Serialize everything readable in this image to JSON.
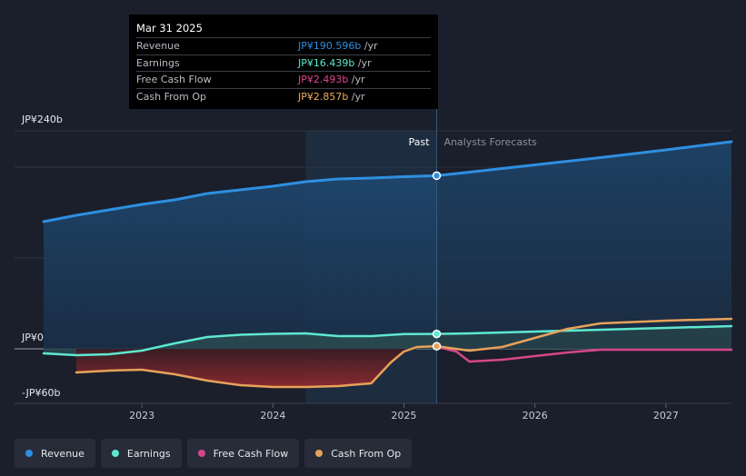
{
  "tooltip": {
    "date": "Mar 31 2025",
    "rows": [
      {
        "label": "Revenue",
        "value": "JP¥190.596b",
        "unit": "/yr",
        "color": "#2e8fe0"
      },
      {
        "label": "Earnings",
        "value": "JP¥16.439b",
        "unit": "/yr",
        "color": "#5ee8d0"
      },
      {
        "label": "Free Cash Flow",
        "value": "JP¥2.493b",
        "unit": "/yr",
        "color": "#e0468c"
      },
      {
        "label": "Cash From Op",
        "value": "JP¥2.857b",
        "unit": "/yr",
        "color": "#f0ad5e"
      }
    ]
  },
  "legend": [
    {
      "label": "Revenue",
      "color": "#2e8fe0"
    },
    {
      "label": "Earnings",
      "color": "#5ee8d0"
    },
    {
      "label": "Free Cash Flow",
      "color": "#d6478b"
    },
    {
      "label": "Cash From Op",
      "color": "#e8a15a"
    }
  ],
  "chart_data": {
    "type": "line",
    "title": "",
    "xlabel": "",
    "ylabel": "",
    "ylim": [
      -60,
      240
    ],
    "xlim": [
      2022.25,
      2027.5
    ],
    "y_tick_labels": [
      {
        "value": 240,
        "label": "JP¥240b"
      },
      {
        "value": 0,
        "label": "JP¥0"
      },
      {
        "value": -60,
        "label": "-JP¥60b"
      }
    ],
    "x_ticks": [
      {
        "value": 2023,
        "label": "2023"
      },
      {
        "value": 2024,
        "label": "2024"
      },
      {
        "value": 2025,
        "label": "2025"
      },
      {
        "value": 2026,
        "label": "2026"
      },
      {
        "value": 2027,
        "label": "2027"
      }
    ],
    "gridlines": [
      240,
      200,
      100,
      0
    ],
    "divider_x": 2025.25,
    "past_label": "Past",
    "forecast_label": "Analysts Forecasts",
    "highlight_band": [
      2024.25,
      2025.25
    ],
    "series": [
      {
        "name": "Revenue",
        "color": "#2e8fe0",
        "fill": true,
        "x": [
          2022.25,
          2022.5,
          2022.75,
          2023.0,
          2023.25,
          2023.5,
          2023.75,
          2024.0,
          2024.25,
          2024.5,
          2024.75,
          2025.0,
          2025.25,
          2025.5,
          2025.75,
          2026.0,
          2026.5,
          2027.0,
          2027.5
        ],
        "values": [
          140,
          147,
          153,
          159,
          164,
          171,
          175,
          179,
          184,
          187,
          188,
          189.5,
          190.6,
          194.5,
          198.5,
          202.5,
          210.5,
          219,
          228
        ]
      },
      {
        "name": "Earnings",
        "color": "#5ee8d0",
        "fill": true,
        "x": [
          2022.25,
          2022.5,
          2022.75,
          2023.0,
          2023.25,
          2023.5,
          2023.75,
          2024.0,
          2024.25,
          2024.5,
          2024.75,
          2025.0,
          2025.25,
          2025.5,
          2026.0,
          2026.5,
          2027.0,
          2027.5
        ],
        "values": [
          -5,
          -7,
          -6,
          -2,
          6,
          13,
          15.5,
          16.5,
          17,
          14,
          14,
          16.2,
          16.4,
          17,
          19,
          21,
          23,
          25
        ]
      },
      {
        "name": "Free Cash Flow",
        "color": "#d6478b",
        "fill": false,
        "x": [
          2025.25,
          2025.4,
          2025.5,
          2025.75,
          2026.0,
          2026.25,
          2026.5,
          2027.0,
          2027.5
        ],
        "values": [
          2.5,
          -3,
          -14,
          -12,
          -8,
          -4,
          -1,
          -1,
          -1
        ]
      },
      {
        "name": "Cash From Op",
        "color": "#e8a15a",
        "fill": false,
        "x": [
          2022.5,
          2022.75,
          2023.0,
          2023.25,
          2023.5,
          2023.75,
          2024.0,
          2024.25,
          2024.5,
          2024.75,
          2024.9,
          2025.0,
          2025.1,
          2025.25,
          2025.5,
          2025.75,
          2026.0,
          2026.25,
          2026.5,
          2027.0,
          2027.5
        ],
        "values": [
          -26,
          -24,
          -23,
          -28,
          -35,
          -40,
          -42,
          -42,
          -41,
          -38,
          -15,
          -3,
          2,
          2.9,
          -2,
          2,
          12,
          22,
          28,
          31,
          33
        ]
      }
    ],
    "negative_fill": {
      "name": "Cash From Op",
      "color": "#8c2a2e",
      "until": 2025.25
    },
    "markers": [
      {
        "series": "Revenue",
        "x": 2025.25,
        "value": 190.6
      },
      {
        "series": "Earnings",
        "x": 2025.25,
        "value": 16.4
      },
      {
        "series": "Cash From Op",
        "x": 2025.25,
        "value": 2.9
      }
    ]
  }
}
